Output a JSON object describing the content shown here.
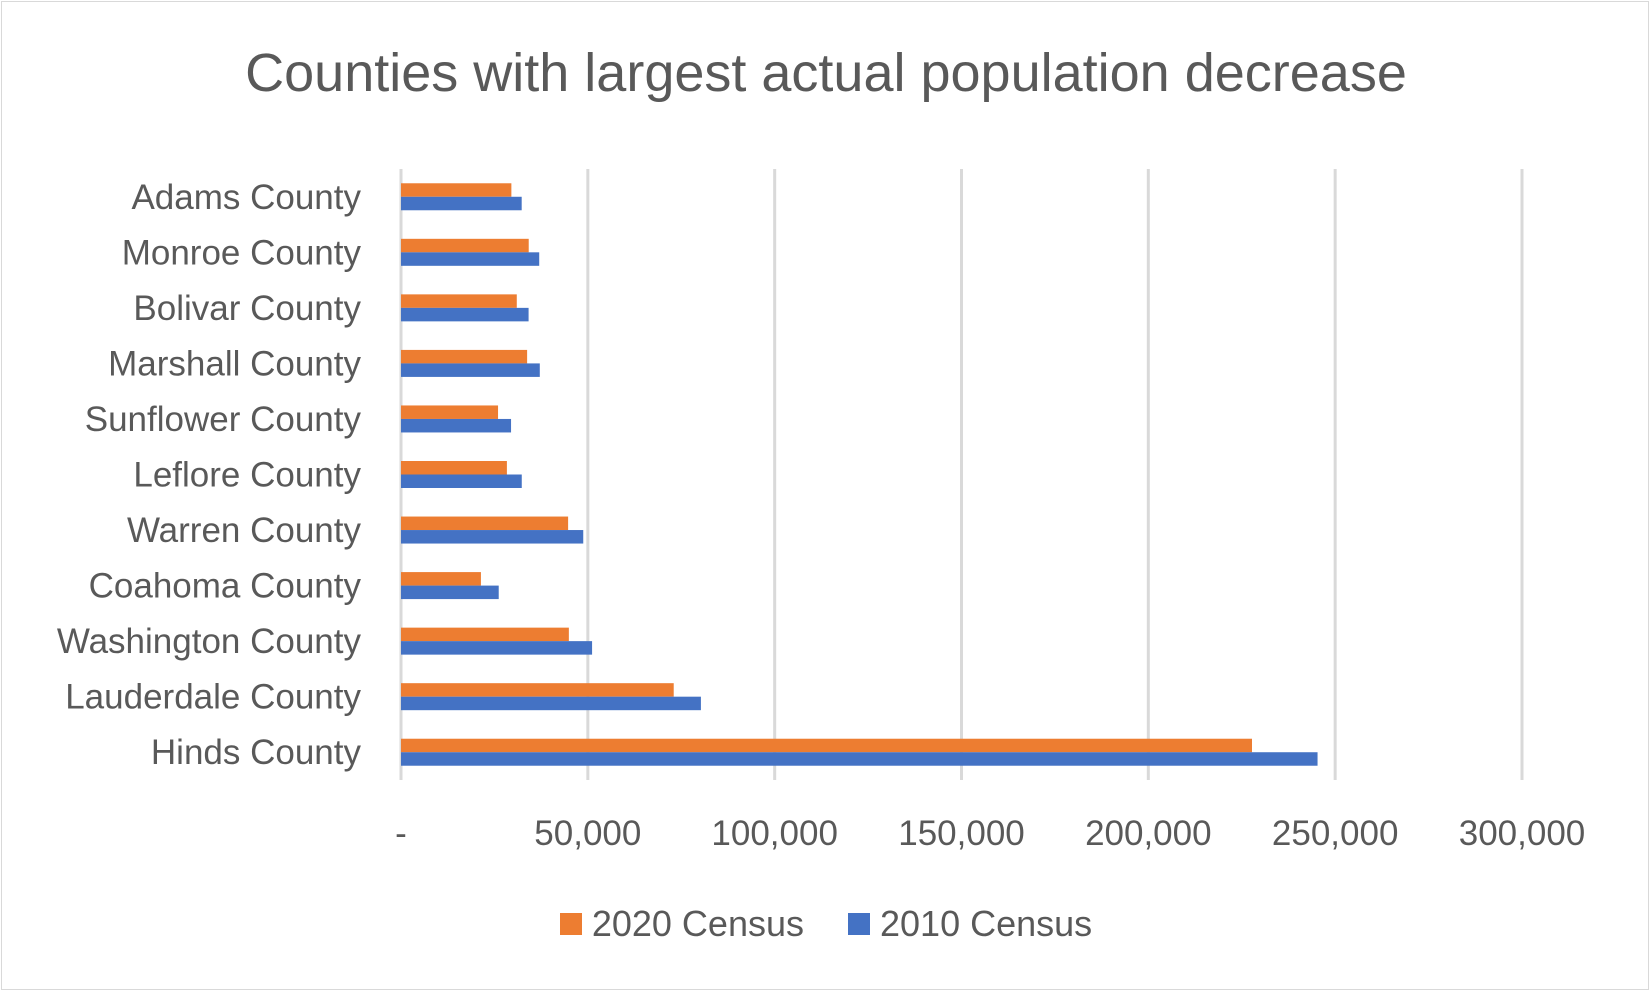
{
  "chart_data": {
    "type": "bar",
    "orientation": "horizontal",
    "title": "Counties with largest actual population decrease",
    "categories": [
      "Adams County",
      "Monroe County",
      "Bolivar County",
      "Marshall County",
      "Sunflower County",
      "Leflore County",
      "Warren County",
      "Coahoma County",
      "Washington County",
      "Lauderdale County",
      "Hinds County"
    ],
    "series": [
      {
        "name": "2020 Census",
        "color": "#ED7D31",
        "values": [
          29538,
          34180,
          30985,
          33752,
          25971,
          28339,
          44722,
          21390,
          44922,
          72984,
          227742
        ]
      },
      {
        "name": "2010 Census",
        "color": "#4472C4",
        "values": [
          32297,
          36989,
          34145,
          37144,
          29450,
          32317,
          48773,
          26151,
          51137,
          80261,
          245285
        ]
      }
    ],
    "xlim": [
      0,
      300000
    ],
    "x_ticks": [
      0,
      50000,
      100000,
      150000,
      200000,
      250000,
      300000
    ],
    "x_tick_labels": [
      "-",
      "50,000",
      "100,000",
      "150,000",
      "200,000",
      "250,000",
      "300,000"
    ],
    "grid": "vertical",
    "legend": "bottom"
  }
}
